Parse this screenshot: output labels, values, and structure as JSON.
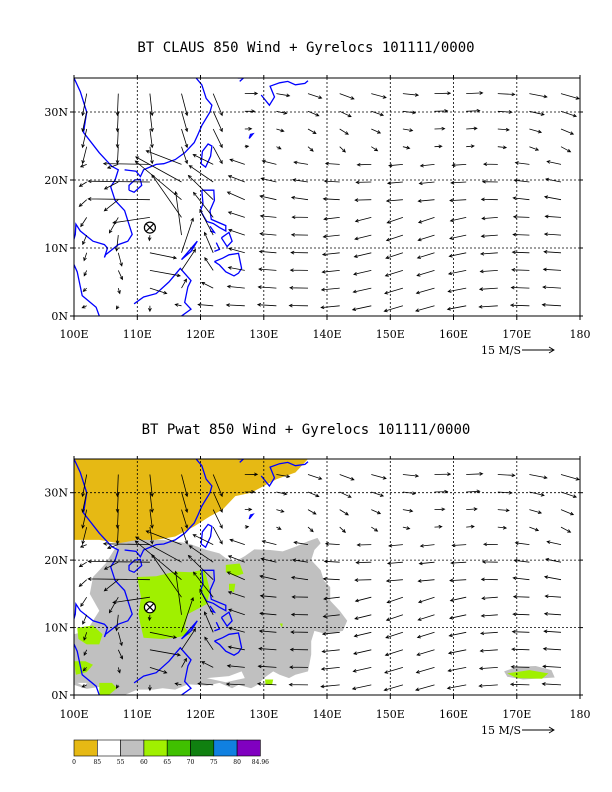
{
  "panels": [
    {
      "title": "BT CLAUS 850 Wind + Gyrelocs 101111/0000",
      "field": "none",
      "xticks": [
        "100E",
        "110E",
        "120E",
        "130E",
        "140E",
        "150E",
        "160E",
        "170E",
        "180"
      ],
      "yticks": [
        "0N",
        "10N",
        "20N",
        "30N"
      ],
      "scale_label": "15 M/S"
    },
    {
      "title": "BT Pwat 850 Wind + Gyrelocs 101111/0000",
      "field": "pwat",
      "xticks": [
        "100E",
        "110E",
        "120E",
        "130E",
        "140E",
        "150E",
        "160E",
        "170E",
        "180"
      ],
      "yticks": [
        "0N",
        "10N",
        "20N",
        "30N"
      ],
      "scale_label": "15 M/S"
    }
  ],
  "map": {
    "lon_range": [
      100,
      180
    ],
    "lat_range": [
      0,
      35
    ],
    "gyre_center": {
      "lon": 112,
      "lat": 13
    },
    "coast_color": "#0000ff",
    "grid": "dashed"
  },
  "legend": {
    "labels": [
      "0",
      "85",
      "55",
      "60",
      "65",
      "70",
      "75",
      "80",
      "84.96"
    ],
    "colors": [
      "#e6b914",
      "#ffffff",
      "#c0c0c0",
      "#a0f000",
      "#40c000",
      "#108010",
      "#1080e0",
      "#8000c0"
    ]
  }
}
